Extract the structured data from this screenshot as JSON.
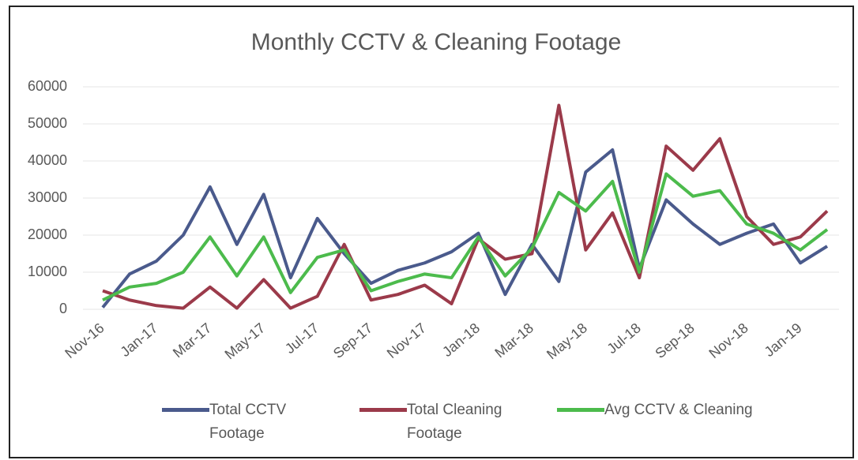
{
  "chart_data": {
    "type": "line",
    "title": "Monthly CCTV & Cleaning Footage",
    "categories": [
      "Nov-16",
      null,
      "Jan-17",
      null,
      "Mar-17",
      null,
      "May-17",
      null,
      "Jul-17",
      null,
      "Sep-17",
      null,
      "Nov-17",
      null,
      "Jan-18",
      null,
      "Mar-18",
      null,
      "May-18",
      null,
      "Jul-18",
      null,
      "Sep-18",
      null,
      "Nov-18",
      null,
      "Jan-19",
      null
    ],
    "series": [
      {
        "name": "Total CCTV Footage",
        "color": "#4a5a8c",
        "values": [
          500,
          9500,
          13000,
          20000,
          33000,
          17500,
          31000,
          8500,
          24500,
          15000,
          7000,
          10500,
          12500,
          15500,
          20500,
          4000,
          17500,
          7500,
          37000,
          43000,
          11000,
          29500,
          23000,
          17500,
          20500,
          23000,
          12500,
          17000
        ]
      },
      {
        "name": "Total Cleaning Footage",
        "color": "#9b3a4a",
        "values": [
          5000,
          2500,
          1000,
          300,
          6000,
          300,
          8000,
          300,
          3500,
          17500,
          2500,
          4000,
          6500,
          1500,
          19000,
          13500,
          15000,
          55000,
          16000,
          26000,
          8500,
          44000,
          37500,
          46000,
          25000,
          17500,
          19500,
          26500
        ]
      },
      {
        "name": "Avg CCTV & Cleaning",
        "color": "#4cbb4c",
        "values": [
          2500,
          6000,
          7000,
          10000,
          19500,
          9000,
          19500,
          4500,
          14000,
          16000,
          5000,
          7500,
          9500,
          8500,
          19500,
          9000,
          16500,
          31500,
          26500,
          34500,
          10000,
          36500,
          30500,
          32000,
          23000,
          20500,
          16000,
          21500
        ]
      }
    ],
    "ylim": [
      0,
      60000
    ],
    "yticks": [
      0,
      10000,
      20000,
      30000,
      40000,
      50000,
      60000
    ],
    "grid": true,
    "legend": "bottom"
  }
}
